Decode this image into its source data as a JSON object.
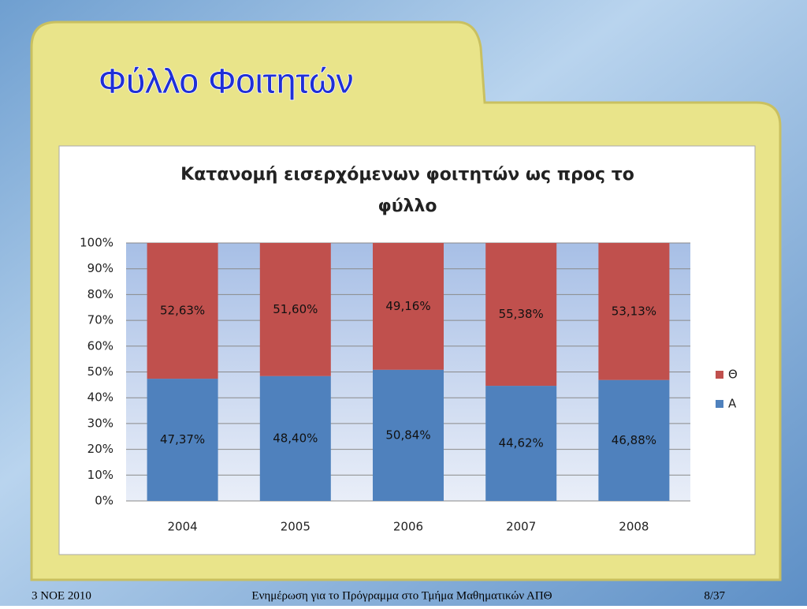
{
  "slide": {
    "title": "Φύλλο Φοιτητών",
    "footer": {
      "date": "3 ΝΟΕ 2010",
      "text": "Ενημέρωση για το Πρόγραμμα στο Τμήμα Μαθηματικών ΑΠΘ",
      "page": "8/37"
    }
  },
  "chart_data": {
    "type": "stacked_bar",
    "title": "Κατανομή εισερχόμενων φοιτητών ως προς το φύλλο",
    "categories": [
      "2004",
      "2005",
      "2006",
      "2007",
      "2008"
    ],
    "series": [
      {
        "name": "Α",
        "color": "#4f81bd",
        "values": [
          47.37,
          48.4,
          50.84,
          44.62,
          46.88
        ],
        "value_labels": [
          "47,37%",
          "48,40%",
          "50,84%",
          "44,62%",
          "46,88%"
        ]
      },
      {
        "name": "Θ",
        "color": "#c0504d",
        "values": [
          52.63,
          51.6,
          49.16,
          55.38,
          53.13
        ],
        "value_labels": [
          "52,63%",
          "51,60%",
          "49,16%",
          "55,38%",
          "53,13%"
        ]
      }
    ],
    "ylim": [
      0,
      100
    ],
    "yticks": [
      {
        "value": 0,
        "label": "0%"
      },
      {
        "value": 10,
        "label": "10%"
      },
      {
        "value": 20,
        "label": "20%"
      },
      {
        "value": 30,
        "label": "30%"
      },
      {
        "value": 40,
        "label": "40%"
      },
      {
        "value": 50,
        "label": "50%"
      },
      {
        "value": 60,
        "label": "60%"
      },
      {
        "value": 70,
        "label": "70%"
      },
      {
        "value": 80,
        "label": "80%"
      },
      {
        "value": 90,
        "label": "90%"
      },
      {
        "value": 100,
        "label": "100%"
      }
    ],
    "grid": true,
    "legend": "right"
  }
}
